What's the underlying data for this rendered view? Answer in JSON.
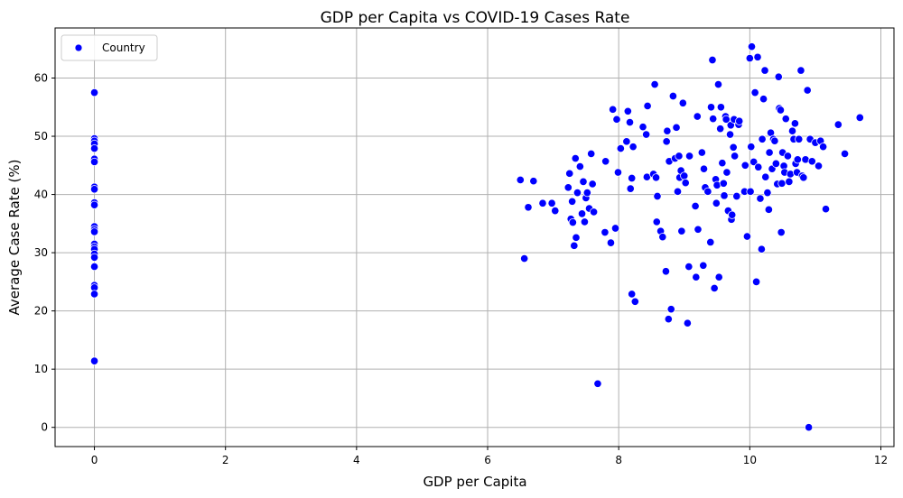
{
  "chart_data": {
    "type": "scatter",
    "title": "GDP per Capita vs COVID-19 Cases Rate",
    "xlabel": "GDP per Capita",
    "ylabel": "Average Case Rate (%)",
    "xlim": [
      -0.6,
      12.2
    ],
    "ylim": [
      -3.3,
      68.6
    ],
    "xticks": [
      0,
      2,
      4,
      6,
      8,
      10,
      12
    ],
    "yticks": [
      0,
      10,
      20,
      30,
      40,
      50,
      60
    ],
    "grid": true,
    "legend_position": "top-left",
    "marker_color": "#0000ff",
    "series": [
      {
        "name": "Country",
        "points": [
          [
            0,
            57.5
          ],
          [
            0,
            49.6
          ],
          [
            0,
            49.2
          ],
          [
            0,
            48.7
          ],
          [
            0,
            47.9
          ],
          [
            0,
            46.1
          ],
          [
            0,
            45.6
          ],
          [
            0,
            41.3
          ],
          [
            0,
            40.9
          ],
          [
            0,
            38.6
          ],
          [
            0,
            38.2
          ],
          [
            0,
            34.5
          ],
          [
            0,
            34.0
          ],
          [
            0,
            33.6
          ],
          [
            0,
            31.5
          ],
          [
            0,
            31.0
          ],
          [
            0,
            30.6
          ],
          [
            0,
            29.8
          ],
          [
            0,
            29.2
          ],
          [
            0,
            27.6
          ],
          [
            0,
            24.4
          ],
          [
            0,
            24.0
          ],
          [
            0,
            22.9
          ],
          [
            0,
            11.4
          ],
          [
            6.5,
            42.5
          ],
          [
            6.56,
            29.0
          ],
          [
            6.62,
            37.8
          ],
          [
            6.7,
            42.3
          ],
          [
            6.84,
            38.5
          ],
          [
            6.98,
            38.5
          ],
          [
            7.03,
            37.2
          ],
          [
            7.23,
            41.2
          ],
          [
            7.25,
            43.6
          ],
          [
            7.27,
            35.8
          ],
          [
            7.29,
            38.8
          ],
          [
            7.3,
            35.2
          ],
          [
            7.32,
            31.2
          ],
          [
            7.34,
            46.2
          ],
          [
            7.35,
            32.6
          ],
          [
            7.37,
            40.3
          ],
          [
            7.41,
            44.8
          ],
          [
            7.44,
            36.7
          ],
          [
            7.46,
            42.2
          ],
          [
            7.48,
            35.3
          ],
          [
            7.5,
            39.4
          ],
          [
            7.52,
            40.3
          ],
          [
            7.55,
            37.6
          ],
          [
            7.58,
            47.0
          ],
          [
            7.6,
            41.8
          ],
          [
            7.62,
            37.0
          ],
          [
            7.68,
            7.5
          ],
          [
            7.79,
            33.5
          ],
          [
            7.8,
            45.7
          ],
          [
            7.88,
            31.7
          ],
          [
            7.91,
            54.6
          ],
          [
            7.95,
            34.2
          ],
          [
            7.97,
            52.9
          ],
          [
            7.99,
            43.8
          ],
          [
            8.03,
            47.9
          ],
          [
            8.12,
            49.1
          ],
          [
            8.14,
            54.3
          ],
          [
            8.17,
            52.4
          ],
          [
            8.18,
            41.0
          ],
          [
            8.2,
            42.8
          ],
          [
            8.22,
            48.2
          ],
          [
            8.2,
            22.9
          ],
          [
            8.25,
            21.6
          ],
          [
            8.37,
            51.6
          ],
          [
            8.42,
            50.3
          ],
          [
            8.43,
            43.0
          ],
          [
            8.44,
            55.2
          ],
          [
            8.53,
            43.5
          ],
          [
            8.55,
            58.9
          ],
          [
            8.57,
            42.9
          ],
          [
            8.58,
            35.3
          ],
          [
            8.59,
            39.7
          ],
          [
            8.64,
            33.7
          ],
          [
            8.67,
            32.7
          ],
          [
            8.72,
            26.8
          ],
          [
            8.73,
            49.1
          ],
          [
            8.74,
            50.9
          ],
          [
            8.76,
            18.6
          ],
          [
            8.77,
            45.7
          ],
          [
            8.8,
            20.3
          ],
          [
            8.83,
            56.9
          ],
          [
            8.86,
            46.2
          ],
          [
            8.88,
            51.5
          ],
          [
            8.9,
            40.5
          ],
          [
            8.92,
            46.6
          ],
          [
            8.93,
            42.9
          ],
          [
            8.95,
            44.1
          ],
          [
            8.96,
            33.7
          ],
          [
            8.98,
            55.7
          ],
          [
            9.0,
            43.2
          ],
          [
            9.02,
            42.0
          ],
          [
            9.05,
            17.9
          ],
          [
            9.07,
            27.6
          ],
          [
            9.08,
            46.6
          ],
          [
            9.17,
            38.0
          ],
          [
            9.18,
            25.8
          ],
          [
            9.2,
            53.4
          ],
          [
            9.21,
            34.0
          ],
          [
            9.27,
            47.2
          ],
          [
            9.29,
            27.8
          ],
          [
            9.3,
            44.4
          ],
          [
            9.32,
            41.2
          ],
          [
            9.36,
            40.5
          ],
          [
            9.4,
            31.8
          ],
          [
            9.41,
            55.0
          ],
          [
            9.43,
            63.1
          ],
          [
            9.44,
            53.0
          ],
          [
            9.46,
            23.9
          ],
          [
            9.48,
            42.6
          ],
          [
            9.49,
            38.5
          ],
          [
            9.5,
            41.6
          ],
          [
            9.52,
            58.9
          ],
          [
            9.53,
            25.8
          ],
          [
            9.55,
            51.3
          ],
          [
            9.56,
            55.0
          ],
          [
            9.58,
            45.4
          ],
          [
            9.6,
            41.9
          ],
          [
            9.61,
            39.8
          ],
          [
            9.63,
            53.4
          ],
          [
            9.64,
            52.9
          ],
          [
            9.65,
            43.8
          ],
          [
            9.67,
            37.2
          ],
          [
            9.7,
            50.3
          ],
          [
            9.71,
            51.9
          ],
          [
            9.72,
            35.7
          ],
          [
            9.73,
            36.5
          ],
          [
            9.75,
            48.1
          ],
          [
            9.76,
            52.9
          ],
          [
            9.77,
            46.6
          ],
          [
            9.8,
            39.7
          ],
          [
            9.83,
            52.0
          ],
          [
            9.84,
            52.6
          ],
          [
            9.92,
            40.5
          ],
          [
            9.93,
            45.0
          ],
          [
            9.96,
            32.8
          ],
          [
            10.0,
            63.4
          ],
          [
            10.01,
            40.5
          ],
          [
            10.02,
            48.2
          ],
          [
            10.03,
            65.4
          ],
          [
            10.06,
            45.6
          ],
          [
            10.08,
            57.5
          ],
          [
            10.1,
            25.0
          ],
          [
            10.12,
            63.6
          ],
          [
            10.13,
            44.7
          ],
          [
            10.16,
            39.3
          ],
          [
            10.18,
            30.6
          ],
          [
            10.19,
            49.5
          ],
          [
            10.21,
            56.4
          ],
          [
            10.23,
            61.3
          ],
          [
            10.24,
            43.0
          ],
          [
            10.27,
            40.3
          ],
          [
            10.29,
            37.4
          ],
          [
            10.3,
            47.2
          ],
          [
            10.32,
            50.6
          ],
          [
            10.34,
            44.4
          ],
          [
            10.36,
            49.5
          ],
          [
            10.38,
            49.2
          ],
          [
            10.4,
            45.3
          ],
          [
            10.42,
            41.8
          ],
          [
            10.44,
            60.2
          ],
          [
            10.45,
            54.8
          ],
          [
            10.47,
            54.5
          ],
          [
            10.48,
            33.5
          ],
          [
            10.49,
            41.9
          ],
          [
            10.5,
            47.2
          ],
          [
            10.52,
            44.9
          ],
          [
            10.53,
            43.8
          ],
          [
            10.55,
            53.0
          ],
          [
            10.58,
            46.6
          ],
          [
            10.6,
            42.2
          ],
          [
            10.62,
            43.5
          ],
          [
            10.65,
            50.9
          ],
          [
            10.67,
            49.5
          ],
          [
            10.69,
            52.2
          ],
          [
            10.7,
            45.3
          ],
          [
            10.72,
            43.8
          ],
          [
            10.73,
            46.0
          ],
          [
            10.75,
            49.5
          ],
          [
            10.78,
            61.3
          ],
          [
            10.8,
            43.2
          ],
          [
            10.82,
            42.9
          ],
          [
            10.85,
            46.0
          ],
          [
            10.88,
            57.9
          ],
          [
            10.9,
            0.0
          ],
          [
            10.92,
            49.5
          ],
          [
            10.95,
            45.7
          ],
          [
            11.0,
            48.9
          ],
          [
            11.05,
            44.9
          ],
          [
            11.08,
            49.2
          ],
          [
            11.12,
            48.2
          ],
          [
            11.16,
            37.5
          ],
          [
            11.35,
            52.0
          ],
          [
            11.45,
            47.0
          ],
          [
            11.68,
            53.2
          ]
        ]
      }
    ]
  }
}
